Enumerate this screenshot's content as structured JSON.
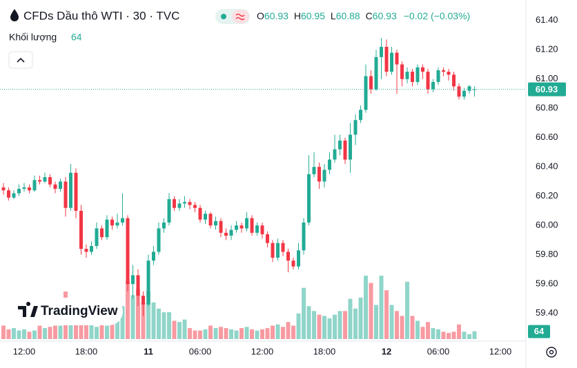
{
  "header": {
    "title": "CFDs Dầu thô WTI · 30 · TVC",
    "o_label": "O",
    "h_label": "H",
    "l_label": "L",
    "c_label": "C",
    "change": "−0.02 (−0.03%)",
    "volume_label": "Khối lượng",
    "logo": "TradingView"
  },
  "chart_data": {
    "type": "candlestick",
    "categories": [
      null,
      null,
      null,
      null,
      "12:00",
      null,
      null,
      null,
      null,
      null,
      null,
      null,
      null,
      null,
      null,
      null,
      "18:00",
      null,
      null,
      null,
      null,
      null,
      null,
      null,
      null,
      null,
      null,
      null,
      "11",
      null,
      null,
      null,
      null,
      null,
      null,
      null,
      null,
      null,
      "06:00",
      null,
      null,
      null,
      null,
      null,
      null,
      null,
      null,
      null,
      null,
      null,
      "12:00",
      null,
      null,
      null,
      null,
      null,
      null,
      null,
      null,
      null,
      null,
      null,
      "18:00",
      null,
      null,
      null,
      null,
      null,
      null,
      null,
      null,
      null,
      null,
      null,
      "12",
      null,
      null,
      null,
      null,
      null,
      null,
      null,
      null,
      null,
      "06:00",
      null,
      null,
      null,
      null,
      null,
      null,
      null,
      null,
      null,
      null,
      null,
      "12:00",
      null
    ],
    "open": [
      60.26,
      60.24,
      60.19,
      60.22,
      60.25,
      60.26,
      60.24,
      60.31,
      60.3,
      60.33,
      60.28,
      60.25,
      60.3,
      60.12,
      60.36,
      60.1,
      59.84,
      59.82,
      59.86,
      59.98,
      59.92,
      60.04,
      60.0,
      60.02,
      60.05,
      59.6,
      59.66,
      59.52,
      59.46,
      59.76,
      59.82,
      59.98,
      60.02,
      60.18,
      60.12,
      60.15,
      60.16,
      60.14,
      60.12,
      60.04,
      60.08,
      60.0,
      60.03,
      59.95,
      59.93,
      59.97,
      60.0,
      59.98,
      60.05,
      59.95,
      60.0,
      59.94,
      59.88,
      59.78,
      59.88,
      59.82,
      59.76,
      59.72,
      59.83,
      60.02,
      60.35,
      60.4,
      60.3,
      60.38,
      60.45,
      60.52,
      60.58,
      60.45,
      60.62,
      60.72,
      60.79,
      61.02,
      60.93,
      61.15,
      61.22,
      61.05,
      61.18,
      61.1,
      61.0,
      61.05,
      60.98,
      61.08,
      61.05,
      60.93,
      60.98,
      61.06,
      61.05,
      61.03,
      60.95,
      60.88,
      60.92,
      60.93,
      null,
      null,
      null,
      null,
      null,
      null
    ],
    "high": [
      60.29,
      60.26,
      60.24,
      60.28,
      60.29,
      60.28,
      60.34,
      60.34,
      60.36,
      60.35,
      60.3,
      60.32,
      60.33,
      60.42,
      60.39,
      60.14,
      59.87,
      59.89,
      60.02,
      60.0,
      60.07,
      60.06,
      60.08,
      60.22,
      60.07,
      59.73,
      59.7,
      59.55,
      59.8,
      59.86,
      60.02,
      60.05,
      60.22,
      60.2,
      60.18,
      60.2,
      60.18,
      60.16,
      60.14,
      60.1,
      60.09,
      60.06,
      60.05,
      59.98,
      60.0,
      60.03,
      60.02,
      60.09,
      60.07,
      60.02,
      60.02,
      59.96,
      59.9,
      59.91,
      59.9,
      59.84,
      59.78,
      59.88,
      60.05,
      60.48,
      60.5,
      60.43,
      60.42,
      60.5,
      60.62,
      60.62,
      60.6,
      60.7,
      60.76,
      60.82,
      61.1,
      61.06,
      61.2,
      61.28,
      61.27,
      61.22,
      61.2,
      61.12,
      61.08,
      61.07,
      61.1,
      61.1,
      61.07,
      61.0,
      61.08,
      61.08,
      61.07,
      61.05,
      60.97,
      60.94,
      60.96,
      60.95,
      null,
      null,
      null,
      null,
      null,
      null
    ],
    "low": [
      60.21,
      60.17,
      60.18,
      60.2,
      60.23,
      60.22,
      60.23,
      60.28,
      60.29,
      60.26,
      60.22,
      60.23,
      60.06,
      60.1,
      60.05,
      59.8,
      59.78,
      59.8,
      59.84,
      59.9,
      59.9,
      59.97,
      59.98,
      60.0,
      59.55,
      59.5,
      59.45,
      59.38,
      59.45,
      59.73,
      59.8,
      59.95,
      60.0,
      60.1,
      60.1,
      60.12,
      60.11,
      60.09,
      60.02,
      60.01,
      59.98,
      59.97,
      59.92,
      59.9,
      59.9,
      59.95,
      59.95,
      59.96,
      59.93,
      59.93,
      59.91,
      59.85,
      59.75,
      59.76,
      59.79,
      59.68,
      59.7,
      59.7,
      59.8,
      60.0,
      60.33,
      60.25,
      60.26,
      60.35,
      60.43,
      60.48,
      60.42,
      60.36,
      60.55,
      60.7,
      60.77,
      60.9,
      60.92,
      61.0,
      61.02,
      61.03,
      60.9,
      60.95,
      60.97,
      60.95,
      60.96,
      61.0,
      60.9,
      60.91,
      60.96,
      61.02,
      60.99,
      60.92,
      60.86,
      60.86,
      60.9,
      60.88,
      null,
      null,
      null,
      null,
      null,
      null
    ],
    "close": [
      60.24,
      60.19,
      60.22,
      60.25,
      60.26,
      60.24,
      60.31,
      60.3,
      60.33,
      60.28,
      60.25,
      60.3,
      60.12,
      60.36,
      60.1,
      59.84,
      59.82,
      59.86,
      59.98,
      59.92,
      60.04,
      60.0,
      60.02,
      60.05,
      59.6,
      59.66,
      59.52,
      59.46,
      59.76,
      59.82,
      59.98,
      60.02,
      60.18,
      60.12,
      60.15,
      60.16,
      60.14,
      60.12,
      60.04,
      60.08,
      60.0,
      60.03,
      59.95,
      59.93,
      59.97,
      60.0,
      59.98,
      60.05,
      59.95,
      60.0,
      59.94,
      59.88,
      59.78,
      59.88,
      59.82,
      59.76,
      59.72,
      59.83,
      60.02,
      60.35,
      60.4,
      60.3,
      60.38,
      60.45,
      60.52,
      60.58,
      60.45,
      60.62,
      60.72,
      60.79,
      61.02,
      60.93,
      61.15,
      61.22,
      61.05,
      61.18,
      61.1,
      61.0,
      61.05,
      60.98,
      61.08,
      61.05,
      60.93,
      60.98,
      61.06,
      61.05,
      61.03,
      60.95,
      60.88,
      60.92,
      60.95,
      60.93,
      null,
      null,
      null,
      null,
      null,
      null
    ],
    "volume": [
      110,
      80,
      90,
      70,
      80,
      60,
      70,
      110,
      90,
      100,
      110,
      110,
      390,
      130,
      150,
      200,
      140,
      120,
      100,
      130,
      110,
      150,
      170,
      270,
      475,
      360,
      410,
      300,
      390,
      300,
      250,
      220,
      220,
      150,
      140,
      160,
      90,
      70,
      70,
      80,
      110,
      90,
      100,
      90,
      80,
      70,
      90,
      100,
      80,
      70,
      80,
      90,
      110,
      120,
      100,
      140,
      110,
      210,
      420,
      270,
      230,
      200,
      190,
      170,
      200,
      230,
      230,
      330,
      250,
      340,
      520,
      460,
      280,
      520,
      400,
      280,
      230,
      190,
      470,
      190,
      150,
      100,
      140,
      90,
      80,
      60,
      50,
      60,
      120,
      60,
      40,
      64,
      null,
      null,
      null,
      null,
      null,
      null
    ],
    "up_color": "#22ab94",
    "down_color": "#f23645",
    "ylim": [
      59.21,
      61.54
    ],
    "yticks": [
      {
        "value": 61.4,
        "label": "61.40"
      },
      {
        "value": 61.2,
        "label": "61.20"
      },
      {
        "value": 61.0,
        "label": "61.00"
      },
      {
        "value": 60.8,
        "label": "60.80"
      },
      {
        "value": 60.6,
        "label": "60.60"
      },
      {
        "value": 60.4,
        "label": "60.40"
      },
      {
        "value": 60.2,
        "label": "60.20"
      },
      {
        "value": 60.0,
        "label": "60.00"
      },
      {
        "value": 59.8,
        "label": "59.80"
      },
      {
        "value": 59.6,
        "label": "59.60"
      },
      {
        "value": 59.4,
        "label": "59.40"
      }
    ],
    "grid": false
  }
}
